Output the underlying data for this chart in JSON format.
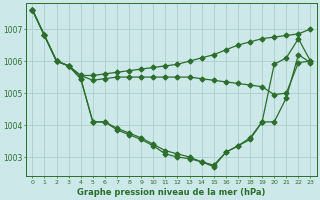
{
  "background_color": "#cce8e8",
  "line_color": "#2d6e2d",
  "grid_color": "#a8c8c8",
  "title": "Graphe pression niveau de la mer (hPa)",
  "xlim": [
    -0.5,
    23.5
  ],
  "ylim": [
    1002.4,
    1007.8
  ],
  "yticks": [
    1003,
    1004,
    1005,
    1006,
    1007
  ],
  "xticks": [
    0,
    1,
    2,
    3,
    4,
    5,
    6,
    7,
    8,
    9,
    10,
    11,
    12,
    13,
    14,
    15,
    16,
    17,
    18,
    19,
    20,
    21,
    22,
    23
  ],
  "series": [
    [
      1007.6,
      1006.8,
      1006.0,
      1005.85,
      1005.55,
      1005.55,
      1005.6,
      1005.65,
      1005.7,
      1005.75,
      1005.8,
      1005.85,
      1005.9,
      1006.0,
      1006.1,
      1006.2,
      1006.35,
      1006.5,
      1006.6,
      1006.7,
      1006.75,
      1006.8,
      1006.85,
      1007.0
    ],
    [
      1007.6,
      1006.8,
      1006.0,
      1005.85,
      1005.55,
      1005.4,
      1005.45,
      1005.5,
      1005.5,
      1005.5,
      1005.5,
      1005.5,
      1005.5,
      1005.5,
      1005.45,
      1005.4,
      1005.35,
      1005.3,
      1005.25,
      1005.2,
      1004.95,
      1005.0,
      1005.95,
      1006.0
    ],
    [
      1007.6,
      1006.8,
      1006.0,
      1005.85,
      1005.45,
      1004.1,
      1004.1,
      1003.9,
      1003.75,
      1003.6,
      1003.4,
      1003.2,
      1003.1,
      1003.0,
      1002.85,
      1002.75,
      1003.15,
      1003.35,
      1003.55,
      1004.1,
      1005.9,
      1006.1,
      1006.7,
      1006.0
    ],
    [
      1007.6,
      1006.8,
      1006.0,
      1005.85,
      1005.45,
      1004.1,
      1004.1,
      1003.85,
      1003.7,
      1003.55,
      1003.35,
      1003.1,
      1003.0,
      1002.95,
      1002.85,
      1002.7,
      1003.15,
      1003.35,
      1003.6,
      1004.1,
      1004.1,
      1004.85,
      1006.2,
      1005.95
    ]
  ],
  "marker": "D",
  "markersize": 2.5,
  "linewidth": 0.9
}
